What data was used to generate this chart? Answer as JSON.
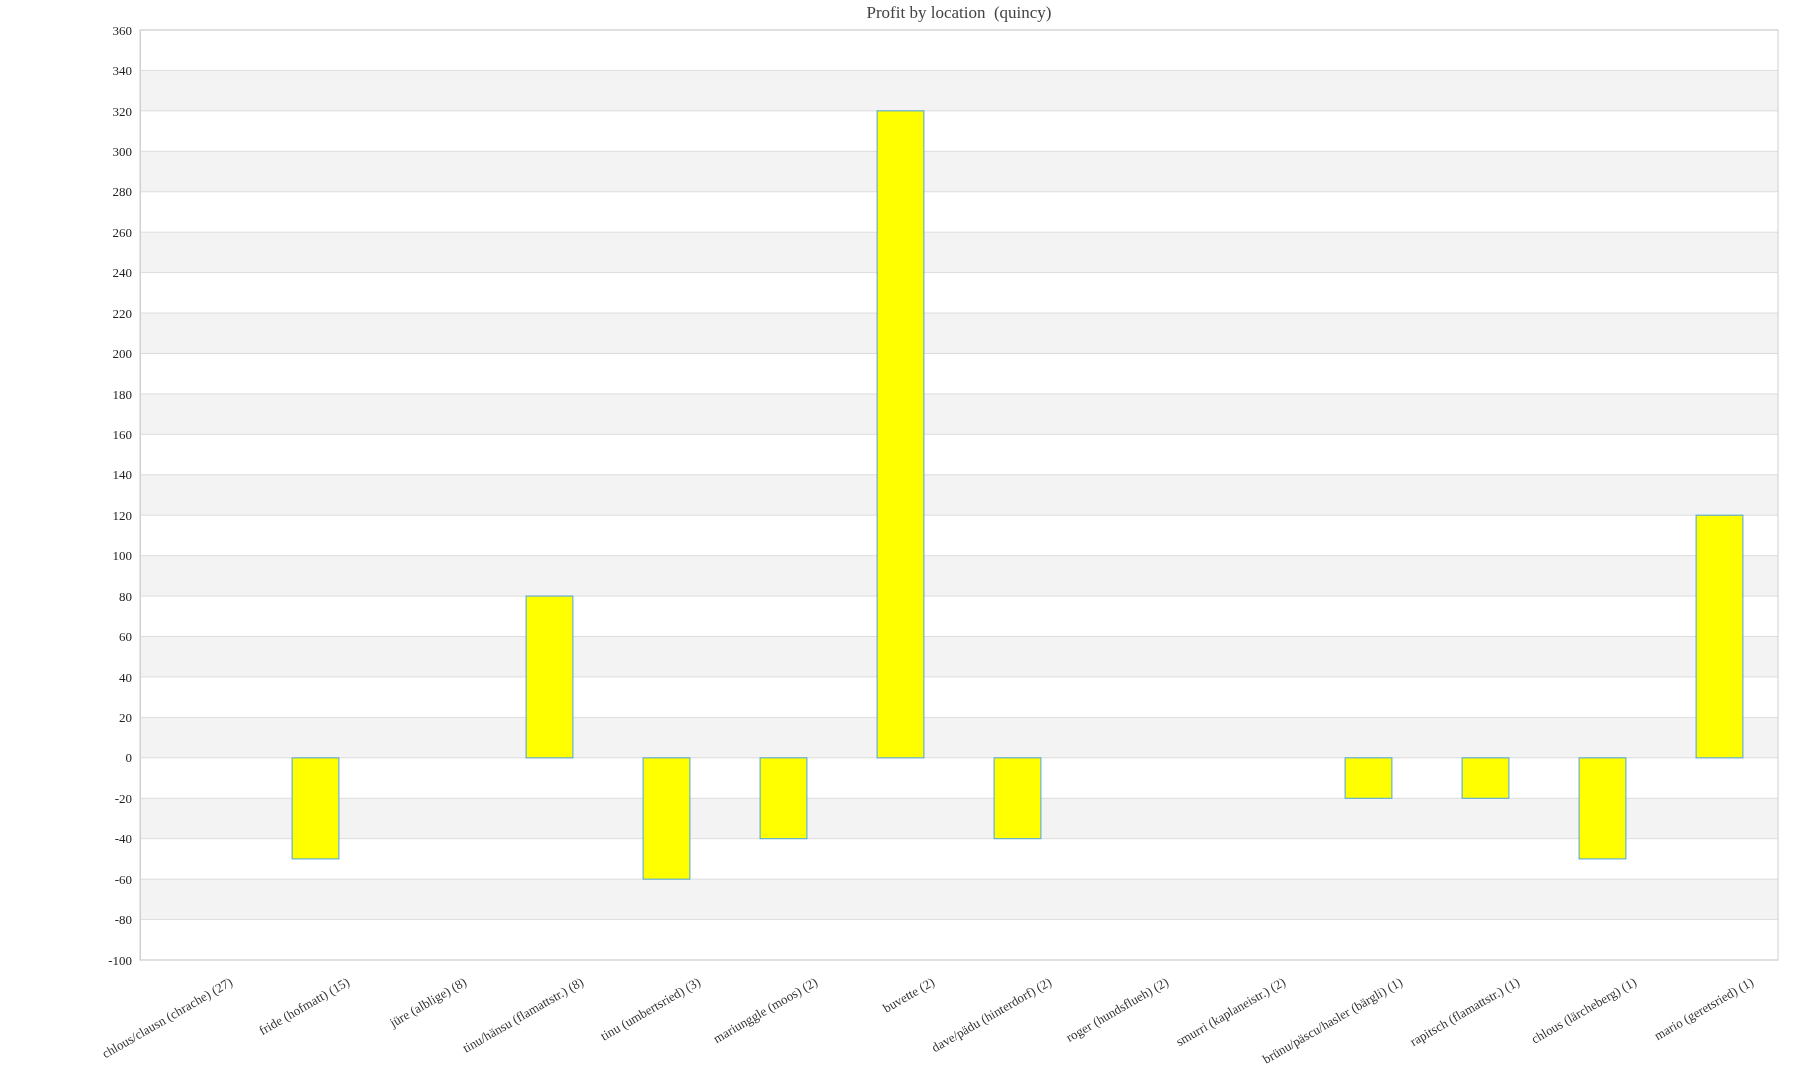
{
  "chart_data": {
    "type": "bar",
    "title": "Profit by location  (quincy)",
    "categories": [
      "chlous/clausn (chrache) (27)",
      "fride (hofmatt) (15)",
      "jüre (alblige) (8)",
      "tinu/hänsu (flamattstr.) (8)",
      "tinu (umbertsried) (3)",
      "mariunggle (moos) (2)",
      "buvette (2)",
      "dave/pädu (hinterdorf) (2)",
      "roger (hundsflueh) (2)",
      "smurri (kaplaneistr.) (2)",
      "brünu/päscu/hasler (bärgli) (1)",
      "rapitsch (flamattstr.) (1)",
      "chlous (lärcheberg) (1)",
      "mario (geretsried) (1)"
    ],
    "values": [
      0,
      -50,
      0,
      80,
      -60,
      -40,
      320,
      -40,
      0,
      0,
      -20,
      -20,
      -50,
      120
    ],
    "color": "#ffff00",
    "ylim": [
      -100,
      360
    ],
    "yticks": [
      -100,
      -80,
      -60,
      -40,
      -20,
      0,
      20,
      40,
      60,
      80,
      100,
      120,
      140,
      160,
      180,
      200,
      220,
      240,
      260,
      280,
      300,
      320,
      340,
      360
    ],
    "grid": "y"
  }
}
